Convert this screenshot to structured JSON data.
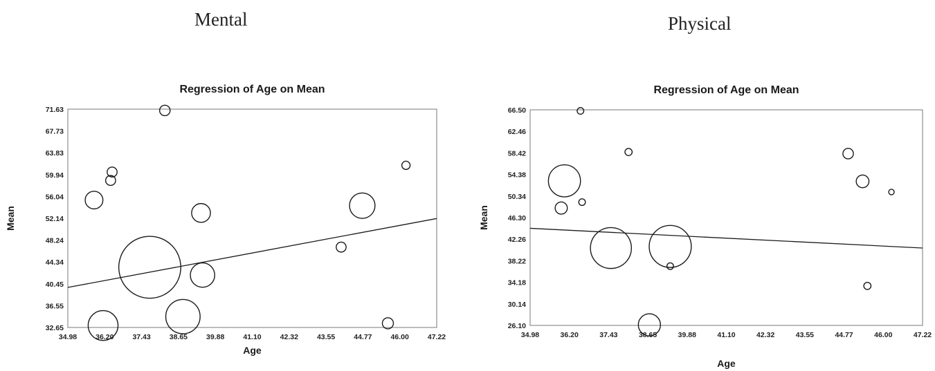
{
  "panels": {
    "left_heading": "Mental",
    "right_heading": "Physical"
  },
  "chart_data": [
    {
      "type": "scatter",
      "bubble": true,
      "title": "Regression of Age on Mean",
      "xlabel": "Age",
      "ylabel": "Mean",
      "xlim": [
        34.98,
        47.22
      ],
      "ylim": [
        32.65,
        71.63
      ],
      "xticks": [
        "34.98",
        "36.20",
        "37.43",
        "38.65",
        "39.88",
        "41.10",
        "42.32",
        "43.55",
        "44.77",
        "46.00",
        "47.22"
      ],
      "yticks": [
        "32.65",
        "36.55",
        "40.45",
        "44.34",
        "48.24",
        "52.14",
        "56.04",
        "59.94",
        "63.83",
        "67.73",
        "71.63"
      ],
      "grid": false,
      "points": [
        {
          "x": 35.85,
          "y": 55.4,
          "size": 1.6
        },
        {
          "x": 36.4,
          "y": 58.9,
          "size": 0.9
        },
        {
          "x": 36.45,
          "y": 60.4,
          "size": 0.9
        },
        {
          "x": 38.2,
          "y": 71.4,
          "size": 0.95
        },
        {
          "x": 37.7,
          "y": 43.4,
          "size": 5.6
        },
        {
          "x": 36.15,
          "y": 33.0,
          "size": 2.7
        },
        {
          "x": 38.8,
          "y": 34.6,
          "size": 3.1
        },
        {
          "x": 39.4,
          "y": 53.1,
          "size": 1.7
        },
        {
          "x": 39.45,
          "y": 42.0,
          "size": 2.2
        },
        {
          "x": 44.05,
          "y": 47.0,
          "size": 0.9
        },
        {
          "x": 44.75,
          "y": 54.4,
          "size": 2.3
        },
        {
          "x": 45.6,
          "y": 33.4,
          "size": 1.0
        },
        {
          "x": 46.2,
          "y": 61.6,
          "size": 0.75
        }
      ],
      "regression": {
        "x": [
          34.98,
          47.22
        ],
        "y": [
          39.8,
          52.1
        ]
      }
    },
    {
      "type": "scatter",
      "bubble": true,
      "title": "Regression of Age on Mean",
      "xlabel": "Age",
      "ylabel": "Mean",
      "xlim": [
        34.98,
        47.22
      ],
      "ylim": [
        26.1,
        66.5
      ],
      "xticks": [
        "34.98",
        "36.20",
        "37.43",
        "38.65",
        "39.88",
        "41.10",
        "42.32",
        "43.55",
        "44.77",
        "46.00",
        "47.22"
      ],
      "yticks": [
        "26.10",
        "30.14",
        "34.18",
        "38.22",
        "42.26",
        "46.30",
        "50.34",
        "54.38",
        "58.42",
        "62.46",
        "66.50"
      ],
      "grid": false,
      "points": [
        {
          "x": 36.05,
          "y": 53.2,
          "size": 2.9
        },
        {
          "x": 35.95,
          "y": 48.1,
          "size": 1.1
        },
        {
          "x": 36.55,
          "y": 66.3,
          "size": 0.6
        },
        {
          "x": 36.6,
          "y": 49.2,
          "size": 0.6
        },
        {
          "x": 38.05,
          "y": 58.6,
          "size": 0.65
        },
        {
          "x": 37.5,
          "y": 40.6,
          "size": 3.7
        },
        {
          "x": 38.7,
          "y": 26.2,
          "size": 2.0
        },
        {
          "x": 39.35,
          "y": 40.9,
          "size": 3.8
        },
        {
          "x": 39.35,
          "y": 37.2,
          "size": 0.6
        },
        {
          "x": 44.9,
          "y": 58.3,
          "size": 0.95
        },
        {
          "x": 45.35,
          "y": 53.1,
          "size": 1.15
        },
        {
          "x": 45.5,
          "y": 33.5,
          "size": 0.65
        },
        {
          "x": 46.25,
          "y": 51.1,
          "size": 0.5
        }
      ],
      "regression": {
        "x": [
          34.98,
          47.22
        ],
        "y": [
          44.3,
          40.6
        ]
      }
    }
  ]
}
